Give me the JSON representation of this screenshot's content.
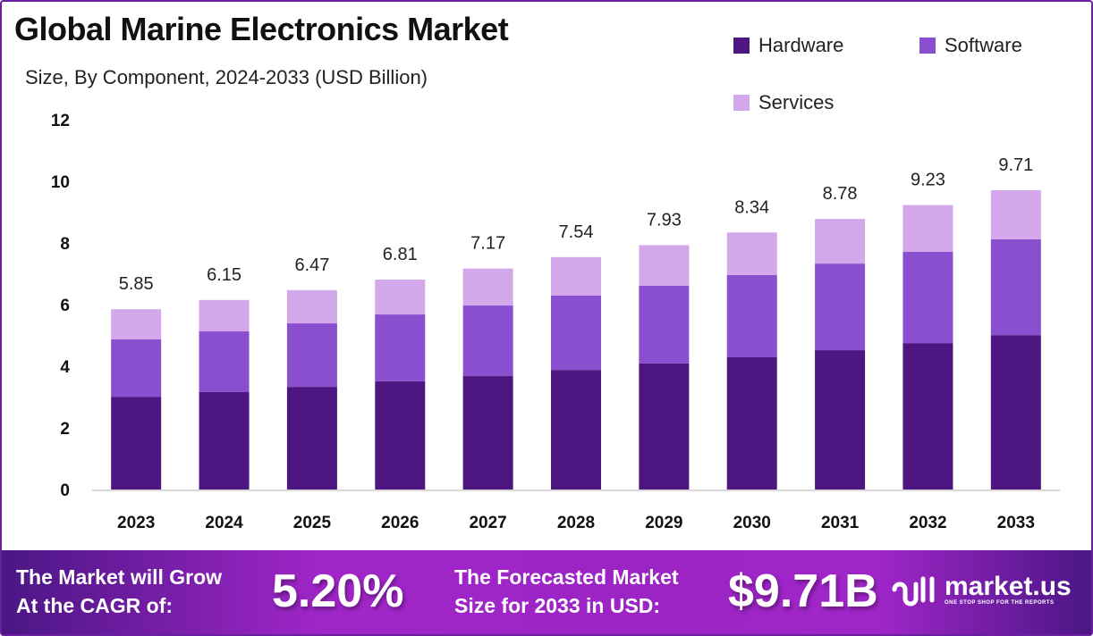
{
  "chart_data": {
    "type": "bar",
    "stacked": true,
    "title": "Global Marine Electronics Market",
    "subtitle": "Size, By Component, 2024-2033 (USD Billion)",
    "categories": [
      "2023",
      "2024",
      "2025",
      "2026",
      "2027",
      "2028",
      "2029",
      "2030",
      "2031",
      "2032",
      "2033"
    ],
    "series": [
      {
        "name": "Hardware",
        "color": "#4e1680",
        "values": [
          3.01,
          3.16,
          3.33,
          3.51,
          3.68,
          3.88,
          4.09,
          4.29,
          4.52,
          4.75,
          5.01
        ]
      },
      {
        "name": "Software",
        "color": "#8a4fcf",
        "values": [
          1.86,
          1.97,
          2.06,
          2.17,
          2.29,
          2.41,
          2.52,
          2.67,
          2.81,
          2.96,
          3.11
        ]
      },
      {
        "name": "Services",
        "color": "#d3a8ea",
        "values": [
          0.98,
          1.02,
          1.08,
          1.13,
          1.2,
          1.25,
          1.32,
          1.38,
          1.45,
          1.52,
          1.59
        ]
      }
    ],
    "totals": [
      "5.85",
      "6.15",
      "6.47",
      "6.81",
      "7.17",
      "7.54",
      "7.93",
      "8.34",
      "8.78",
      "9.23",
      "9.71"
    ],
    "ylim": [
      0,
      12
    ],
    "yticks": [
      "0",
      "2",
      "4",
      "6",
      "8",
      "10",
      "12"
    ],
    "grid": false,
    "legend": "top-right"
  },
  "footer": {
    "cagr_label_1": "The Market will Grow",
    "cagr_label_2": "At the CAGR of:",
    "cagr_value": "5.20%",
    "forecast_label_1": "The Forecasted Market",
    "forecast_label_2": "Size for 2033 in USD:",
    "forecast_value": "$9.71B",
    "logo_name": "market.us",
    "logo_tagline": "ONE STOP SHOP FOR THE REPORTS"
  }
}
